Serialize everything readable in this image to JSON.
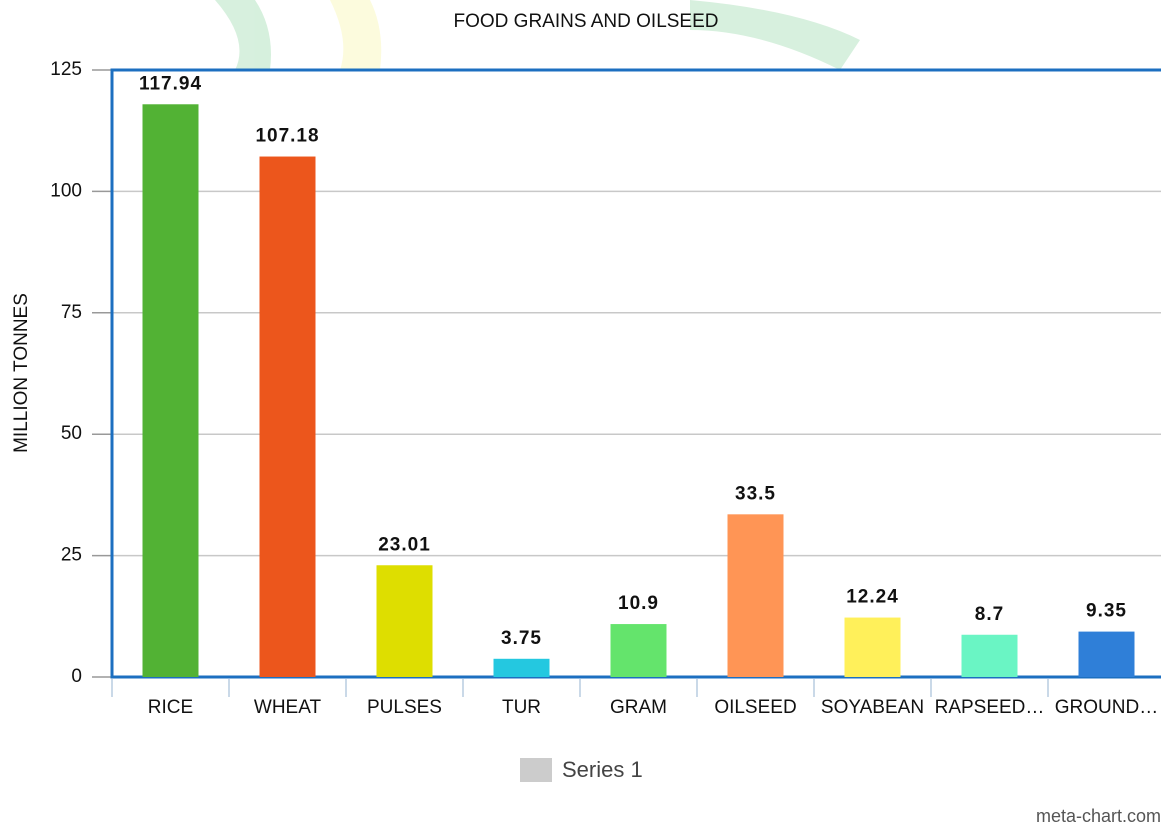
{
  "chart_data": {
    "type": "bar",
    "title": "FOOD GRAINS AND OILSEED",
    "y_label": "MILLION TONNES",
    "categories": [
      "RICE",
      "WHEAT",
      "PULSES",
      "TUR",
      "GRAM",
      "OILSEED",
      "SOYABEAN",
      "RAPSEED…",
      "GROUND…"
    ],
    "series": [
      {
        "name": "Series 1",
        "color": "#cccccc",
        "colors": [
          "#52b234",
          "#ec561c",
          "#dede00",
          "#24c8e0",
          "#64e46c",
          "#ff9555",
          "#fff05a",
          "#6af5c4",
          "#2f7fd8"
        ],
        "values": [
          117.94,
          107.18,
          23.01,
          3.75,
          10.9,
          33.5,
          12.24,
          8.7,
          9.35
        ]
      }
    ],
    "ylim": [
      0,
      125
    ],
    "yticks": [
      0,
      25,
      50,
      75,
      100,
      125
    ],
    "grid": true,
    "source": "meta-chart.com"
  }
}
